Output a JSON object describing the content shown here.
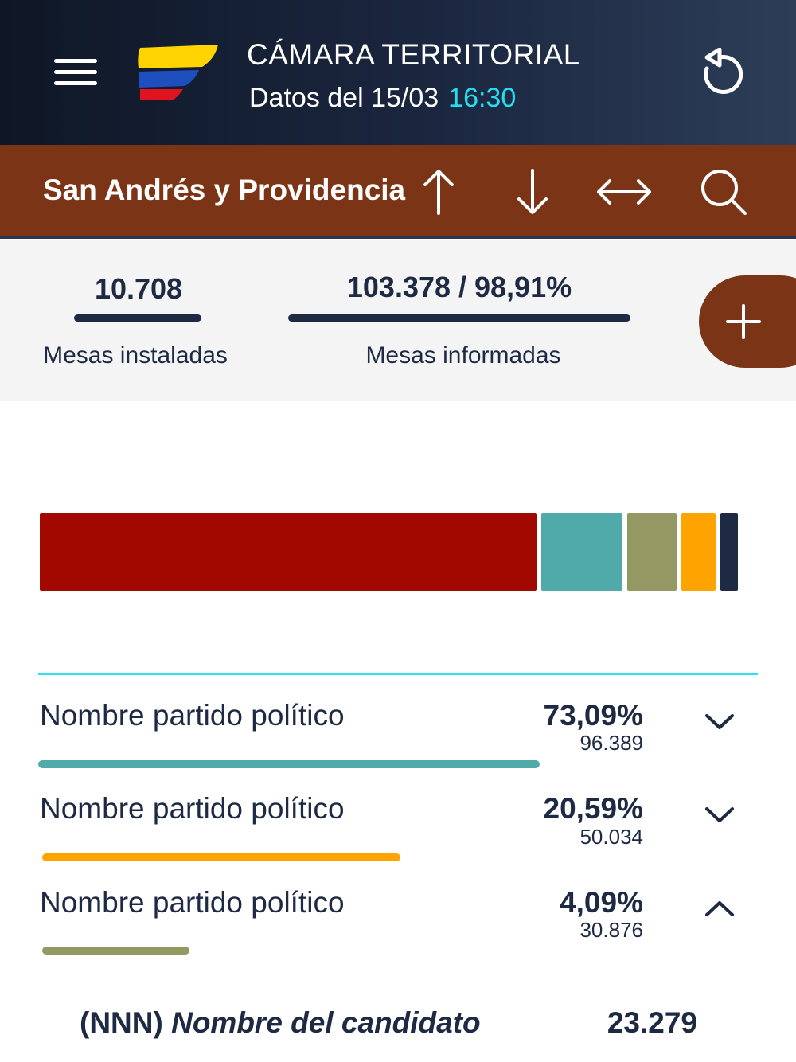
{
  "header": {
    "title": "CÁMARA TERRITORIAL",
    "data_label": "Datos del 15/03",
    "data_time": "16:30"
  },
  "region": {
    "name": "San Andrés y Providencia"
  },
  "stats": {
    "installed_value": "10.708",
    "installed_label": "Mesas instaladas",
    "reported_value": "103.378 / 98,91%",
    "reported_label": "Mesas informadas"
  },
  "colors": {
    "accent": "#7c3416",
    "navy": "#1e2a44",
    "cyan": "#22e0f0"
  },
  "chart_data": {
    "type": "bar",
    "stacked": true,
    "orientation": "horizontal",
    "series": [
      {
        "name": "segment-1",
        "share": 0.7,
        "color": "#a10800"
      },
      {
        "name": "segment-2",
        "share": 0.12,
        "color": "#4faaa9"
      },
      {
        "name": "segment-3",
        "share": 0.075,
        "color": "#949863"
      },
      {
        "name": "segment-4",
        "share": 0.054,
        "color": "#ffa300"
      },
      {
        "name": "segment-5",
        "share": 0.031,
        "color": "#1e2a44"
      }
    ]
  },
  "parties": [
    {
      "name": "Nombre partido político",
      "pct": "73,09%",
      "votes": "96.389",
      "bar_share": 0.7,
      "bar_color": "#4faaa9",
      "expanded": false
    },
    {
      "name": "Nombre partido político",
      "pct": "20,59%",
      "votes": "50.034",
      "bar_share": 0.5,
      "bar_color": "#ffa300",
      "expanded": false
    },
    {
      "name": "Nombre partido político",
      "pct": "4,09%",
      "votes": "30.876",
      "bar_share": 0.205,
      "bar_color": "#949863",
      "expanded": true
    }
  ],
  "candidate": {
    "code": "(NNN)",
    "name": "Nombre del candidato",
    "votes": "23.279"
  }
}
